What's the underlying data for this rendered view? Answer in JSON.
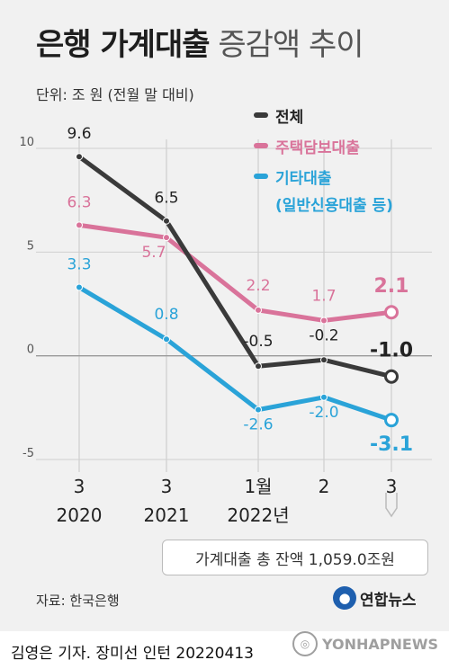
{
  "header": {
    "title_bold": "은행 가계대출",
    "title_light": "증감액 추이",
    "unit_note": "단위: 조 원 (전월 말 대비)"
  },
  "legend": {
    "total": "전체",
    "mortgage": "주택담보대출",
    "other_line1": "기타대출",
    "other_line2": "(일반신용대출 등)"
  },
  "callout": "가계대출 총 잔액 1,059.0조원",
  "source": "자료: 한국은행",
  "logo": "연합뉴스",
  "credit": "김영은 기자. 장미선 인턴  20220413",
  "watermark": "YONHAPNEWS",
  "colors": {
    "total": "#3a3a3a",
    "mortgage": "#d9739a",
    "other": "#2aa3d8",
    "panel": "#f1f1f1"
  },
  "chart_data": {
    "type": "line",
    "categories": [
      [
        "3",
        "2020"
      ],
      [
        "3",
        "2021"
      ],
      [
        "1월",
        "2022년"
      ],
      [
        "2",
        ""
      ],
      [
        "3",
        ""
      ]
    ],
    "ylim": [
      -5,
      10
    ],
    "yticks": [
      "10",
      "5",
      "0",
      "-5"
    ],
    "series": [
      {
        "name": "전체",
        "key": "total",
        "values": [
          9.6,
          6.5,
          -0.5,
          -0.2,
          -1.0
        ],
        "labels": [
          "9.6",
          "6.5",
          "-0.5",
          "-0.2",
          "-1.0"
        ]
      },
      {
        "name": "주택담보대출",
        "key": "mortgage",
        "values": [
          6.3,
          5.7,
          2.2,
          1.7,
          2.1
        ],
        "labels": [
          "6.3",
          "5.7",
          "2.2",
          "1.7",
          "2.1"
        ]
      },
      {
        "name": "기타대출 (일반신용대출 등)",
        "key": "other",
        "values": [
          3.3,
          0.8,
          -2.6,
          -2.0,
          -3.1
        ],
        "labels": [
          "3.3",
          "0.8",
          "-2.6",
          "-2.0",
          "-3.1"
        ]
      }
    ]
  }
}
